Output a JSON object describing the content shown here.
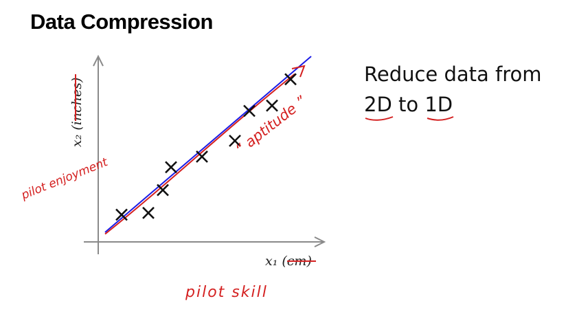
{
  "slide": {
    "title": "Data Compression"
  },
  "subtitle": {
    "line1": "Reduce data from",
    "line2_a": "2D",
    "line2_b": " to ",
    "line2_c": "1D"
  },
  "chart_data": {
    "type": "scatter",
    "xlabel": "x₁ (cm)",
    "ylabel": "x₂ (inches)",
    "points": [
      {
        "x": 0.08,
        "y": 0.1
      },
      {
        "x": 0.21,
        "y": 0.11
      },
      {
        "x": 0.28,
        "y": 0.24
      },
      {
        "x": 0.32,
        "y": 0.37
      },
      {
        "x": 0.47,
        "y": 0.43
      },
      {
        "x": 0.63,
        "y": 0.52
      },
      {
        "x": 0.7,
        "y": 0.69
      },
      {
        "x": 0.81,
        "y": 0.72
      },
      {
        "x": 0.9,
        "y": 0.87
      }
    ],
    "fit_line": {
      "from": [
        0.0,
        0.0
      ],
      "to": [
        1.0,
        1.0
      ],
      "color": "#1a1ae6"
    },
    "projection_line_color": "#d42020",
    "annotations": {
      "y_handwritten": "pilot enjoyment",
      "x_handwritten": "pilot skill",
      "line_handwritten": "“ aptitude ”"
    },
    "grid": false
  }
}
